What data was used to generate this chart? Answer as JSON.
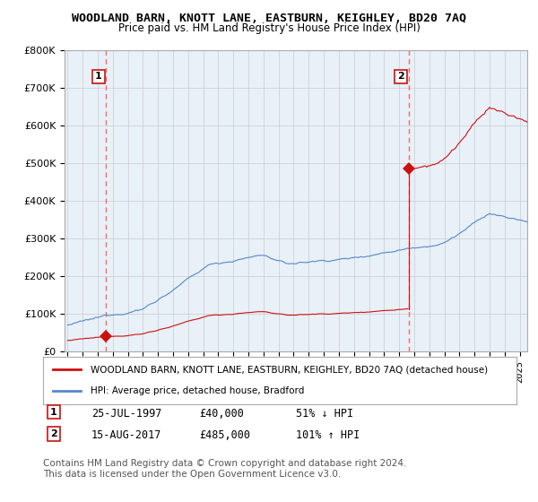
{
  "title": "WOODLAND BARN, KNOTT LANE, EASTBURN, KEIGHLEY, BD20 7AQ",
  "subtitle": "Price paid vs. HM Land Registry's House Price Index (HPI)",
  "ylim": [
    0,
    800000
  ],
  "yticks": [
    0,
    100000,
    200000,
    300000,
    400000,
    500000,
    600000,
    700000,
    800000
  ],
  "ytick_labels": [
    "£0",
    "£100K",
    "£200K",
    "£300K",
    "£400K",
    "£500K",
    "£600K",
    "£700K",
    "£800K"
  ],
  "sale1_date_num": 1997.56,
  "sale1_price": 40000,
  "sale1_label": "1",
  "sale2_date_num": 2017.62,
  "sale2_price": 485000,
  "sale2_label": "2",
  "hpi_color": "#5588cc",
  "sales_color": "#cc1111",
  "vline_color": "#ff6666",
  "plot_bg_color": "#e8f0f8",
  "legend_entry1": "WOODLAND BARN, KNOTT LANE, EASTBURN, KEIGHLEY, BD20 7AQ (detached house)",
  "legend_entry2": "HPI: Average price, detached house, Bradford",
  "annotation1_date": "25-JUL-1997",
  "annotation1_price": "£40,000",
  "annotation1_hpi": "51% ↓ HPI",
  "annotation2_date": "15-AUG-2017",
  "annotation2_price": "£485,000",
  "annotation2_hpi": "101% ↑ HPI",
  "footer": "Contains HM Land Registry data © Crown copyright and database right 2024.\nThis data is licensed under the Open Government Licence v3.0.",
  "background_color": "#ffffff",
  "grid_color": "#cccccc"
}
